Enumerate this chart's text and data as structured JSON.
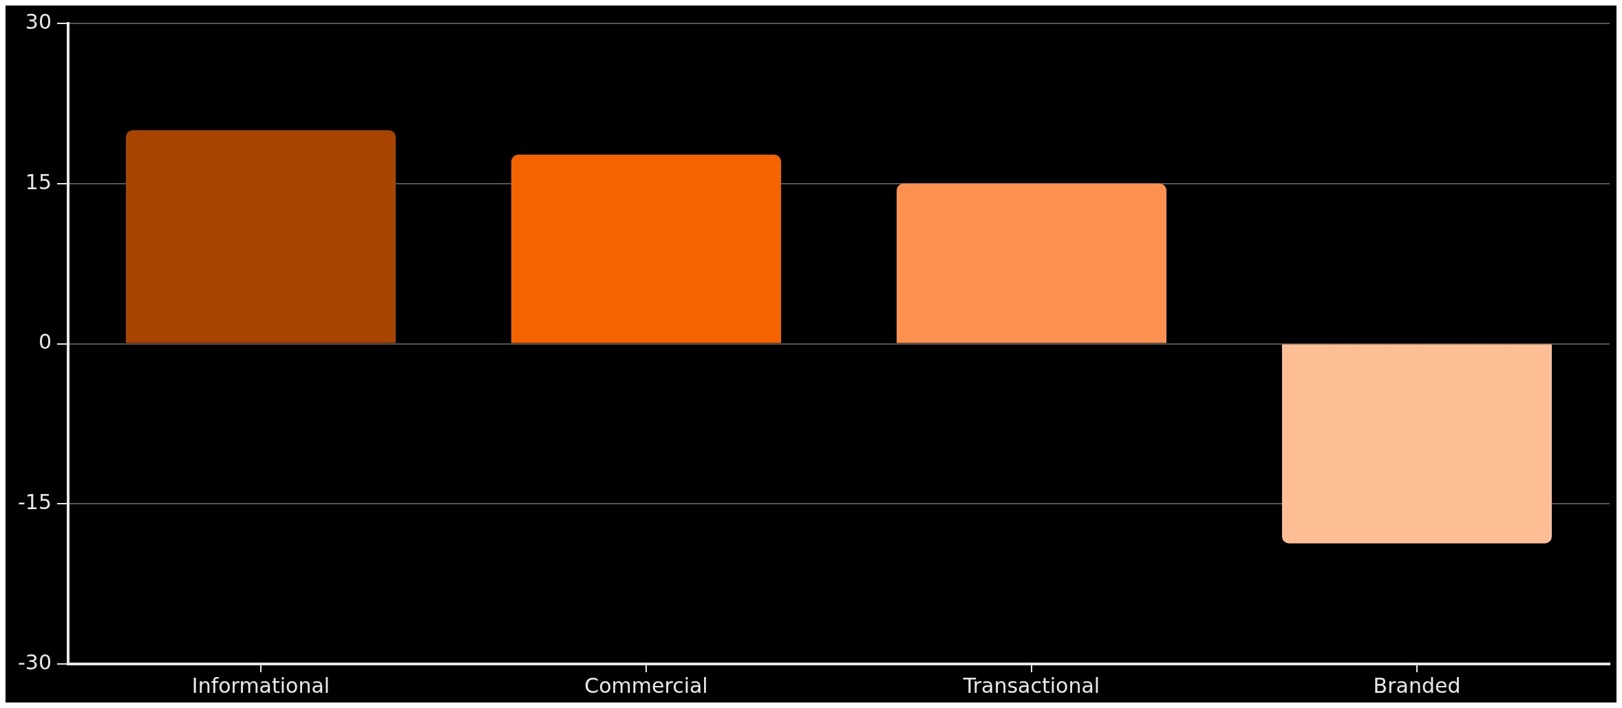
{
  "chart_data": {
    "type": "bar",
    "categories": [
      "Informational",
      "Commercial",
      "Transactional",
      "Branded"
    ],
    "values": [
      20,
      17.7,
      15,
      -18.7
    ],
    "colors": [
      "#a84300",
      "#f56200",
      "#fd914f",
      "#fdbe96"
    ],
    "ylim": [
      -30,
      30
    ],
    "yticks": [
      -30,
      -15,
      0,
      15,
      30
    ],
    "grid": "y",
    "legend": false
  }
}
